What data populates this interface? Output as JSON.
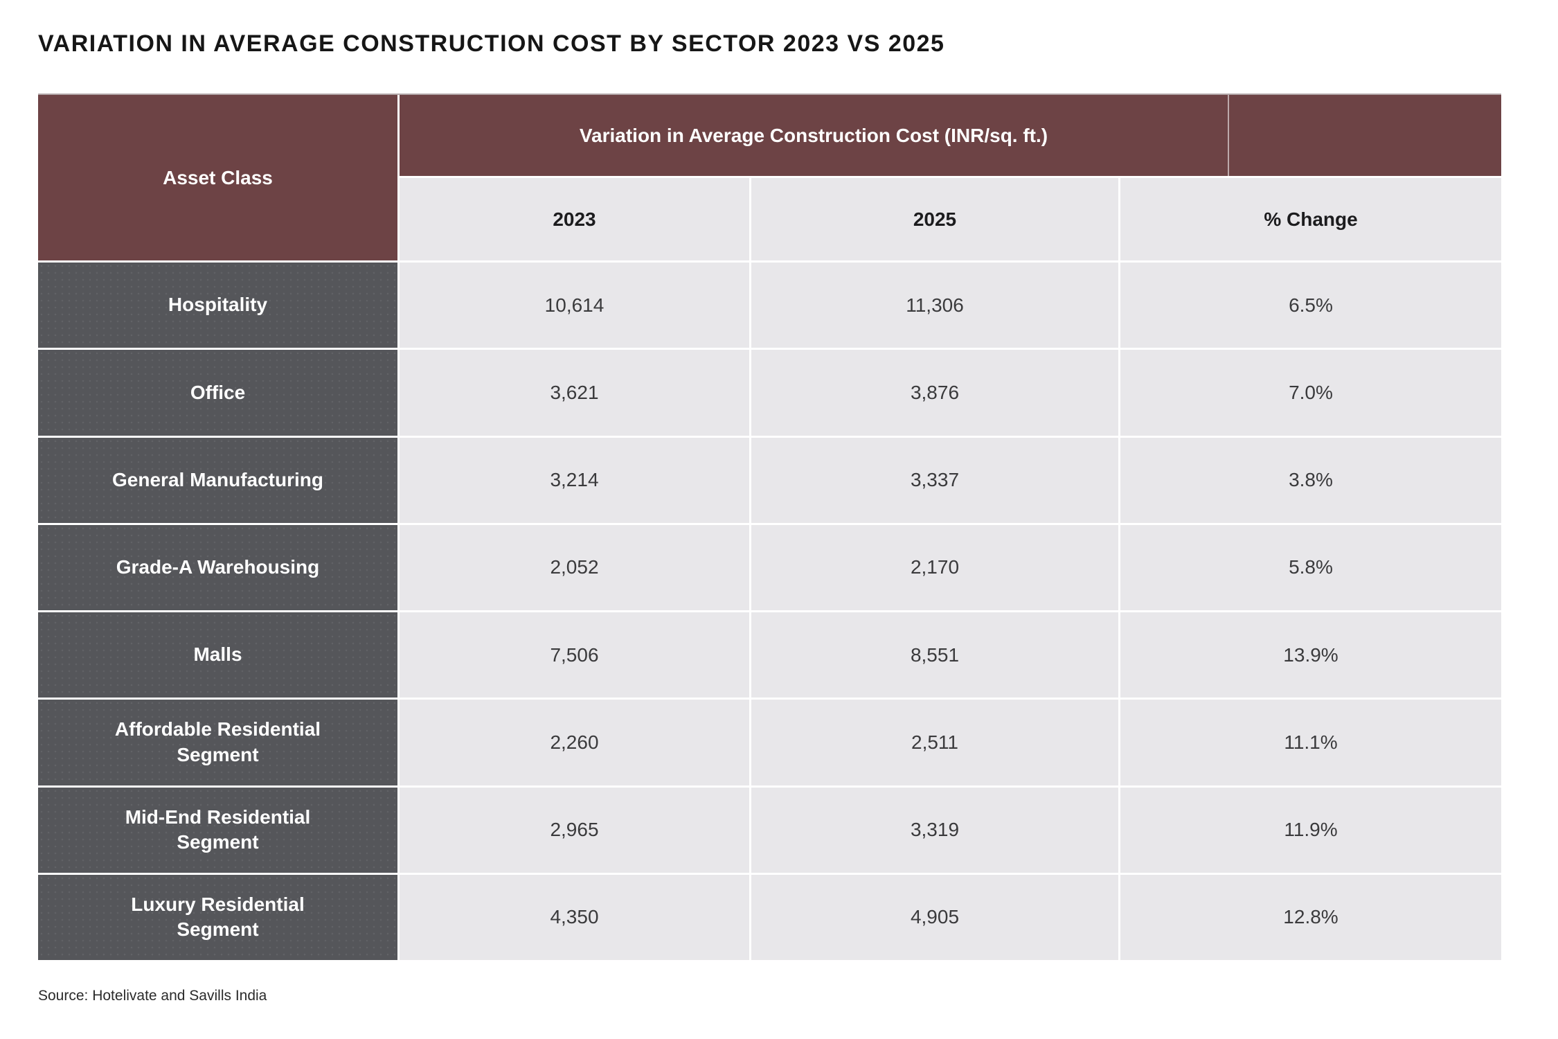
{
  "page": {
    "title": "VARIATION IN AVERAGE CONSTRUCTION COST BY SECTOR 2023 VS 2025",
    "source": "Source: Hotelivate and Savills India"
  },
  "table": {
    "corner_header": "Asset Class",
    "banner_header": "Variation in Average Construction Cost (INR/sq. ft.)",
    "columns": [
      "2023",
      "2025",
      "% Change"
    ],
    "rows": [
      {
        "label": "Hospitality",
        "y2023": "10,614",
        "y2025": "11,306",
        "change": "6.5%"
      },
      {
        "label": "Office",
        "y2023": "3,621",
        "y2025": "3,876",
        "change": "7.0%"
      },
      {
        "label": "General Manufacturing",
        "y2023": "3,214",
        "y2025": "3,337",
        "change": "3.8%"
      },
      {
        "label": "Grade-A Warehousing",
        "y2023": "2,052",
        "y2025": "2,170",
        "change": "5.8%"
      },
      {
        "label": "Malls",
        "y2023": "7,506",
        "y2025": "8,551",
        "change": "13.9%"
      },
      {
        "label": "Affordable Residential\nSegment",
        "y2023": "2,260",
        "y2025": "2,511",
        "change": "11.1%"
      },
      {
        "label": "Mid-End Residential\nSegment",
        "y2023": "2,965",
        "y2025": "3,319",
        "change": "11.9%"
      },
      {
        "label": "Luxury Residential\nSegment",
        "y2023": "4,350",
        "y2025": "4,905",
        "change": "12.8%"
      }
    ],
    "colors": {
      "header_maroon": "#6d4345",
      "row_label_gray": "#55565a",
      "cell_light_gray": "#e8e7ea"
    }
  },
  "chart_data": {
    "type": "table",
    "title": "VARIATION IN AVERAGE CONSTRUCTION COST BY SECTOR 2023 VS 2025",
    "group_header": "Variation in Average Construction Cost (INR/sq. ft.)",
    "columns": [
      "Asset Class",
      "2023",
      "2025",
      "% Change"
    ],
    "rows": [
      [
        "Hospitality",
        10614,
        11306,
        "6.5%"
      ],
      [
        "Office",
        3621,
        3876,
        "7.0%"
      ],
      [
        "General Manufacturing",
        3214,
        3337,
        "3.8%"
      ],
      [
        "Grade-A Warehousing",
        2052,
        2170,
        "5.8%"
      ],
      [
        "Malls",
        7506,
        8551,
        "13.9%"
      ],
      [
        "Affordable Residential Segment",
        2260,
        2511,
        "11.1%"
      ],
      [
        "Mid-End Residential Segment",
        2965,
        3319,
        "11.9%"
      ],
      [
        "Luxury Residential Segment",
        4350,
        4905,
        "12.8%"
      ]
    ],
    "source": "Source: Hotelivate and Savills India"
  }
}
